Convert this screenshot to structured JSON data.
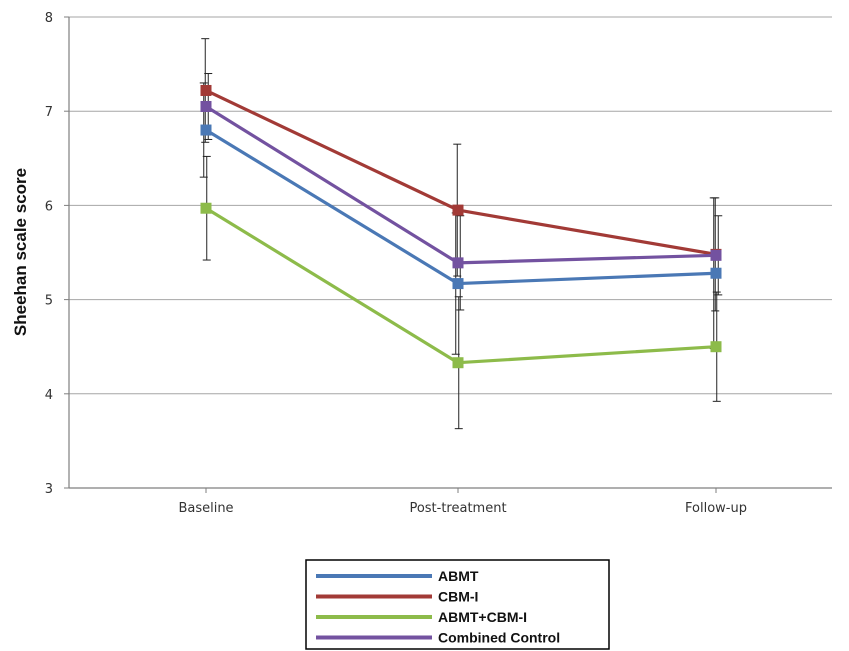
{
  "chart_data": {
    "type": "line",
    "title": "",
    "xlabel": "",
    "ylabel": "Sheehan scale score",
    "categories": [
      "Baseline",
      "Post-treatment",
      "Follow-up"
    ],
    "ylim": [
      3,
      8
    ],
    "yticks": [
      3,
      4,
      5,
      6,
      7,
      8
    ],
    "grid": "horizontal",
    "legend_position": "bottom-center",
    "series": [
      {
        "name": "ABMT",
        "color": "#4a78b5",
        "values": [
          6.8,
          5.17,
          5.28
        ],
        "error": [
          0.5,
          0.75,
          0.8
        ]
      },
      {
        "name": "CBM-I",
        "color": "#a23a36",
        "values": [
          7.22,
          5.95,
          5.48
        ],
        "error": [
          0.55,
          0.7,
          0.6
        ]
      },
      {
        "name": "ABMT+CBM-I",
        "color": "#8dbb4a",
        "values": [
          5.97,
          4.33,
          4.5
        ],
        "error": [
          0.55,
          0.7,
          0.58
        ]
      },
      {
        "name": "Combined Control",
        "color": "#7352a0",
        "values": [
          7.05,
          5.39,
          5.47
        ],
        "error": [
          0.35,
          0.5,
          0.42
        ]
      }
    ]
  }
}
